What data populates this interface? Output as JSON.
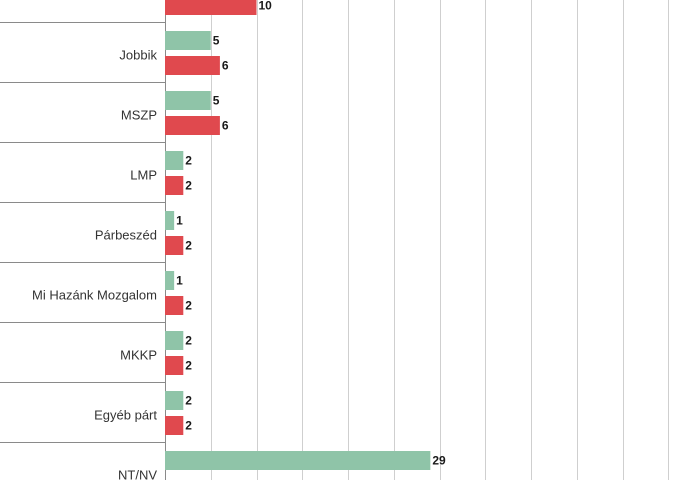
{
  "chart_data": {
    "type": "bar",
    "orientation": "horizontal",
    "categories": [
      "",
      "Jobbik",
      "MSZP",
      "LMP",
      "Párbeszéd",
      "Mi Hazánk Mozgalom",
      "MKKP",
      "Egyéb párt",
      "NT/NV"
    ],
    "series": [
      {
        "color": "#8fc4a8",
        "values": [
          null,
          5,
          5,
          2,
          1,
          1,
          2,
          2,
          29
        ]
      },
      {
        "color": "#e0494e",
        "values": [
          10,
          6,
          6,
          2,
          2,
          2,
          2,
          2,
          null
        ]
      }
    ],
    "xlim": [
      0,
      59
    ],
    "grid": true,
    "legend": "none"
  }
}
